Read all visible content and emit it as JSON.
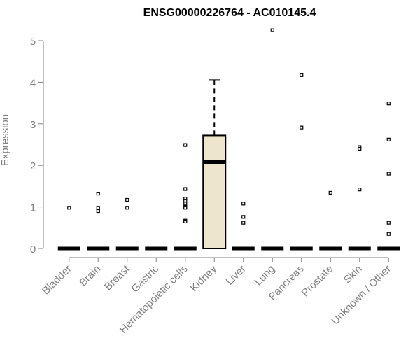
{
  "chart_data": {
    "type": "boxplot",
    "title": "ENSG00000226764 - AC010145.4",
    "xlabel": "",
    "ylabel": "Expression",
    "ylim": [
      0,
      5.25
    ],
    "yticks": [
      0,
      1,
      2,
      3,
      4,
      5
    ],
    "grid": false,
    "legend": "none",
    "colors": {
      "box_fill": "#ede6cc",
      "stroke": "#000000",
      "axis": "#808080"
    },
    "categories": [
      "Bladder",
      "Brain",
      "Breast",
      "Gastric",
      "Hematopoietic cells",
      "Kidney",
      "Liver",
      "Lung",
      "Pancreas",
      "Prostate",
      "Skin",
      "Unknown / Other"
    ],
    "boxes": [
      {
        "category": "Bladder",
        "median": 0,
        "q1": 0,
        "q3": 0,
        "whisker_low": 0,
        "whisker_high": 0,
        "outliers": [
          0.98
        ]
      },
      {
        "category": "Brain",
        "median": 0,
        "q1": 0,
        "q3": 0,
        "whisker_low": 0,
        "whisker_high": 0,
        "outliers": [
          1.32,
          0.98,
          0.9
        ]
      },
      {
        "category": "Breast",
        "median": 0,
        "q1": 0,
        "q3": 0,
        "whisker_low": 0,
        "whisker_high": 0,
        "outliers": [
          1.17,
          0.98
        ]
      },
      {
        "category": "Gastric",
        "median": 0,
        "q1": 0,
        "q3": 0,
        "whisker_low": 0,
        "whisker_high": 0,
        "outliers": []
      },
      {
        "category": "Hematopoietic cells",
        "median": 0,
        "q1": 0,
        "q3": 0,
        "whisker_low": 0,
        "whisker_high": 0,
        "outliers": [
          2.49,
          1.43,
          1.2,
          1.15,
          1.08,
          1.0,
          0.98,
          0.67,
          0.65
        ]
      },
      {
        "category": "Kidney",
        "median": 2.08,
        "q1": 0,
        "q3": 2.72,
        "whisker_low": 0,
        "whisker_high": 4.05,
        "outliers": []
      },
      {
        "category": "Liver",
        "median": 0,
        "q1": 0,
        "q3": 0,
        "whisker_low": 0,
        "whisker_high": 0,
        "outliers": [
          1.08,
          0.76,
          0.62
        ]
      },
      {
        "category": "Lung",
        "median": 0,
        "q1": 0,
        "q3": 0,
        "whisker_low": 0,
        "whisker_high": 0,
        "outliers": [
          5.25
        ]
      },
      {
        "category": "Pancreas",
        "median": 0,
        "q1": 0,
        "q3": 0,
        "whisker_low": 0,
        "whisker_high": 0,
        "outliers": [
          4.17,
          2.91
        ]
      },
      {
        "category": "Prostate",
        "median": 0,
        "q1": 0,
        "q3": 0,
        "whisker_low": 0,
        "whisker_high": 0,
        "outliers": [
          1.34
        ]
      },
      {
        "category": "Skin",
        "median": 0,
        "q1": 0,
        "q3": 0,
        "whisker_low": 0,
        "whisker_high": 0,
        "outliers": [
          2.44,
          2.4,
          1.42
        ]
      },
      {
        "category": "Unknown / Other",
        "median": 0,
        "q1": 0,
        "q3": 0,
        "whisker_low": 0,
        "whisker_high": 0,
        "outliers": [
          3.49,
          2.62,
          1.8,
          0.62,
          0.35
        ]
      }
    ]
  }
}
